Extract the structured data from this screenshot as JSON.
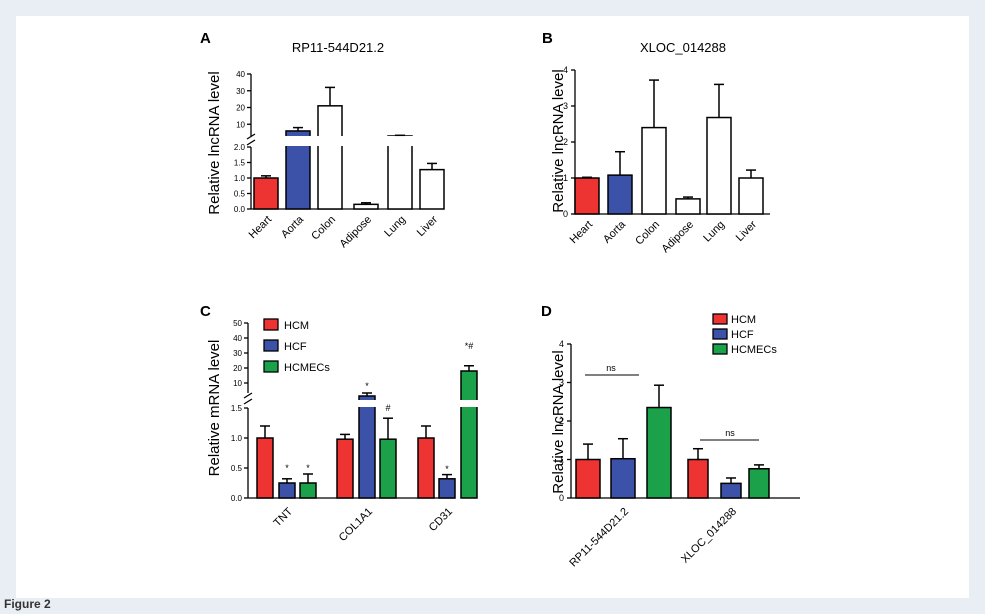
{
  "figure_caption_stub": "Figure 2",
  "colors": {
    "heart": "#ee3333",
    "aorta": "#3b52a8",
    "white": "#ffffff",
    "hcm": "#ee3333",
    "hcf": "#3b52a8",
    "hcmecs": "#1aa14a",
    "frame_bg": "#e8eef3"
  },
  "chart_data": [
    {
      "panel": "A",
      "type": "bar",
      "title": "RP11-544D21.2",
      "ylabel": "Relative lncRNA level",
      "xlabel": "",
      "axis_break": true,
      "lower_ylim": [
        0,
        2.0
      ],
      "lower_ticks": [
        "0.0",
        "0.5",
        "1.0",
        "1.5",
        "2.0"
      ],
      "upper_ylim": [
        0,
        40
      ],
      "upper_ticks": [
        "10",
        "20",
        "30",
        "40"
      ],
      "categories": [
        "Heart",
        "Aorta",
        "Colon",
        "Adipose",
        "Lung",
        "Liver"
      ],
      "values": [
        1.0,
        6.0,
        21.0,
        0.15,
        3.0,
        1.27
      ],
      "errors": [
        0.07,
        2.0,
        11.0,
        0.05,
        0.4,
        0.2
      ],
      "bar_colors": [
        "heart",
        "aorta",
        "white",
        "white",
        "white",
        "white"
      ]
    },
    {
      "panel": "B",
      "type": "bar",
      "title": "XLOC_014288",
      "ylabel": "Relative lncRNA level",
      "xlabel": "",
      "ylim": [
        0,
        4
      ],
      "ticks": [
        "0",
        "1",
        "2",
        "3",
        "4"
      ],
      "categories": [
        "Heart",
        "Aorta",
        "Colon",
        "Adipose",
        "Lung",
        "Liver"
      ],
      "values": [
        1.0,
        1.08,
        2.4,
        0.42,
        2.68,
        1.0
      ],
      "errors": [
        0.02,
        0.65,
        1.32,
        0.05,
        0.92,
        0.22
      ],
      "bar_colors": [
        "heart",
        "aorta",
        "white",
        "white",
        "white",
        "white"
      ]
    },
    {
      "panel": "C",
      "type": "bar",
      "title": "",
      "ylabel": "Relative mRNA level",
      "xlabel": "",
      "axis_break": true,
      "lower_ylim": [
        0,
        1.5
      ],
      "lower_ticks": [
        "0.0",
        "0.5",
        "1.0",
        "1.5"
      ],
      "upper_ylim": [
        0,
        50
      ],
      "upper_ticks": [
        "10",
        "20",
        "30",
        "40",
        "50"
      ],
      "categories": [
        "TNT",
        "COL1A1",
        "CD31"
      ],
      "series": [
        {
          "name": "HCM",
          "color": "hcm",
          "values": [
            1.0,
            0.98,
            1.0
          ],
          "errors": [
            0.2,
            0.08,
            0.2
          ]
        },
        {
          "name": "HCF",
          "color": "hcf",
          "values": [
            0.25,
            4.0,
            0.32
          ],
          "errors": [
            0.07,
            0.3,
            0.07
          ]
        },
        {
          "name": "HCMECs",
          "color": "hcmecs",
          "values": [
            0.25,
            0.98,
            18.0
          ],
          "errors": [
            0.15,
            0.35,
            3.5
          ]
        }
      ],
      "annotations": [
        {
          "category": "TNT",
          "series": "HCF",
          "text": "*"
        },
        {
          "category": "TNT",
          "series": "HCMECs",
          "text": "*"
        },
        {
          "category": "COL1A1",
          "series": "HCF",
          "text": "*"
        },
        {
          "category": "COL1A1",
          "series": "HCMECs",
          "text": "#"
        },
        {
          "category": "CD31",
          "series": "HCF",
          "text": "*"
        },
        {
          "category": "CD31",
          "series": "HCMECs",
          "text": "*#"
        }
      ],
      "legend_position": "top-left"
    },
    {
      "panel": "D",
      "type": "bar",
      "title": "",
      "ylabel": "Relative lncRNA level",
      "xlabel": "",
      "ylim": [
        0,
        4
      ],
      "ticks": [
        "0",
        "1",
        "2",
        "3",
        "4"
      ],
      "categories": [
        "RP11-544D21.2",
        "XLOC_014288"
      ],
      "series": [
        {
          "name": "HCM",
          "color": "hcm",
          "values": [
            1.0,
            1.0
          ],
          "errors": [
            0.4,
            0.28
          ]
        },
        {
          "name": "HCF",
          "color": "hcf",
          "values": [
            1.02,
            0.38
          ],
          "errors": [
            0.52,
            0.14
          ]
        },
        {
          "name": "HCMECs",
          "color": "hcmecs",
          "values": [
            2.35,
            0.76
          ],
          "errors": [
            0.58,
            0.1
          ]
        }
      ],
      "annotations": [
        {
          "category": "RP11-544D21.2",
          "text": "ns"
        },
        {
          "category": "XLOC_014288",
          "text": "ns"
        }
      ],
      "legend_position": "top-right"
    }
  ]
}
